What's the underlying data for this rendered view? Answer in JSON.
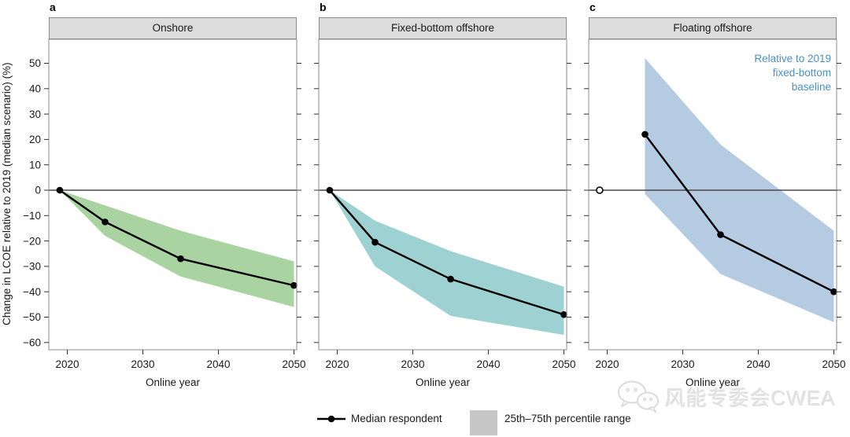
{
  "axes": {
    "y_title": "Change in LCOE relative to 2019 (median scenario) (%)",
    "x_title": "Online year",
    "y_ticks": [
      50,
      40,
      30,
      20,
      10,
      0,
      -10,
      -20,
      -30,
      -40,
      -50,
      -60
    ],
    "x_ticks": [
      2020,
      2030,
      2040,
      2050
    ],
    "ylim": [
      -62.5,
      59.5
    ],
    "xlim": [
      2017.5,
      2051.5
    ],
    "grid": false
  },
  "chart_data": [
    {
      "type": "line",
      "letter": "a",
      "title": "Onshore",
      "band_color": "#a9d3a0",
      "x": [
        2019,
        2025,
        2035,
        2050
      ],
      "series": [
        {
          "name": "Median respondent",
          "values": [
            0,
            -12.5,
            -27,
            -37.5
          ]
        }
      ],
      "band": {
        "name": "25th–75th percentile range",
        "x": [
          2019,
          2025,
          2035,
          2050
        ],
        "upper": [
          0,
          -6,
          -16,
          -28
        ],
        "lower": [
          0,
          -18,
          -34,
          -46
        ]
      }
    },
    {
      "type": "line",
      "letter": "b",
      "title": "Fixed-bottom offshore",
      "band_color": "#9ed1d1",
      "x": [
        2019,
        2025,
        2035,
        2050
      ],
      "series": [
        {
          "name": "Median respondent",
          "values": [
            0,
            -20.5,
            -35,
            -49
          ]
        }
      ],
      "band": {
        "name": "25th–75th percentile range",
        "x": [
          2019,
          2025,
          2035,
          2050
        ],
        "upper": [
          0,
          -12,
          -24,
          -38
        ],
        "lower": [
          0,
          -30,
          -49.5,
          -57
        ]
      }
    },
    {
      "type": "line",
      "letter": "c",
      "title": "Floating offshore",
      "band_color": "#b5cbe2",
      "x": [
        2025,
        2035,
        2050
      ],
      "series": [
        {
          "name": "Median respondent",
          "values": [
            22,
            -17.5,
            -40
          ]
        }
      ],
      "band": {
        "name": "25th–75th percentile range",
        "x": [
          2025,
          2035,
          2050
        ],
        "upper": [
          52,
          18,
          -16
        ],
        "lower": [
          -1.5,
          -33,
          -52
        ]
      },
      "baseline_point": {
        "x": 2019,
        "y": 0,
        "style": "open"
      },
      "annotation_lines": [
        "Relative to 2019",
        "fixed-bottom",
        "baseline"
      ],
      "annotation_color": "#4a90c8"
    }
  ],
  "legend": {
    "median_label": "Median respondent",
    "band_label": "25th–75th percentile range",
    "swatch_color": "#c6c6c6"
  },
  "watermark": {
    "icon": "wechat-icon",
    "text": "风能专委会CWEA"
  }
}
